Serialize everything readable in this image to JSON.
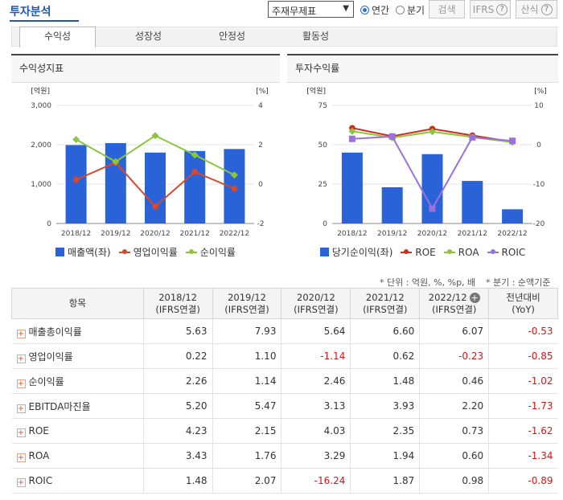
{
  "header": {
    "title": "투자분석",
    "select_value": "주재무제표",
    "radio_annual": "연간",
    "radio_quarter": "분기",
    "search_btn": "검색",
    "ifrs_btn": "IFRS",
    "calc_btn": "산식"
  },
  "tabs": [
    "수익성",
    "성장성",
    "안정성",
    "활동성"
  ],
  "left_chart_title": "수익성지표",
  "right_chart_title": "투자수익률",
  "chart_data": [
    {
      "type": "bar",
      "categories": [
        "2018/12",
        "2019/12",
        "2020/12",
        "2021/12",
        "2022/12"
      ],
      "left_unit": "[억원]",
      "right_unit": "[%]",
      "ylim_left": [
        0,
        3000
      ],
      "ylim_right": [
        -2,
        4
      ],
      "left_ticks": [
        "3,000",
        "2,000",
        "1,000",
        "0"
      ],
      "right_ticks": [
        "4",
        "2",
        "0",
        "-2"
      ],
      "series": [
        {
          "name": "매출액(좌)",
          "type": "bar",
          "axis": "left",
          "color": "#2a63d8",
          "values": [
            1990,
            2040,
            1800,
            1840,
            1890
          ]
        },
        {
          "name": "영업이익률",
          "type": "line",
          "axis": "right",
          "color": "#d9482a",
          "values": [
            0.22,
            1.1,
            -1.14,
            0.62,
            -0.23
          ]
        },
        {
          "name": "순이익률",
          "type": "line",
          "axis": "right",
          "color": "#8cc63e",
          "values": [
            2.26,
            1.14,
            2.46,
            1.48,
            0.46
          ]
        }
      ]
    },
    {
      "type": "bar",
      "categories": [
        "2018/12",
        "2019/12",
        "2020/12",
        "2021/12",
        "2022/12"
      ],
      "left_unit": "[억원]",
      "right_unit": "[%]",
      "ylim_left": [
        0,
        75
      ],
      "ylim_right": [
        -20,
        10
      ],
      "left_ticks": [
        "75",
        "50",
        "25",
        "0"
      ],
      "right_ticks": [
        "10",
        "0",
        "-10",
        "-20"
      ],
      "series": [
        {
          "name": "당기순이익(좌)",
          "type": "bar",
          "axis": "left",
          "color": "#2a63d8",
          "values": [
            45,
            23,
            44,
            27,
            9
          ]
        },
        {
          "name": "ROE",
          "type": "line",
          "axis": "right",
          "color": "#c8301e",
          "values": [
            4.23,
            2.15,
            4.03,
            2.35,
            0.73
          ]
        },
        {
          "name": "ROA",
          "type": "line",
          "axis": "right",
          "color": "#8cc63e",
          "values": [
            3.43,
            1.76,
            3.29,
            1.94,
            0.6
          ]
        },
        {
          "name": "ROIC",
          "type": "line",
          "axis": "right",
          "color": "#9b72d8",
          "values": [
            1.48,
            2.07,
            -16.24,
            1.87,
            0.98
          ]
        }
      ]
    }
  ],
  "notes": {
    "unit": "* 단위 : 억원, %, %p, 배",
    "quarter": "* 분기 : 순액기준"
  },
  "table": {
    "headers": [
      "항목",
      "2018/12\n(IFRS연결)",
      "2019/12\n(IFRS연결)",
      "2020/12\n(IFRS연결)",
      "2021/12\n(IFRS연결)",
      "2022/12\n(IFRS연결)",
      "전년대비\n(YoY)"
    ],
    "rows": [
      {
        "name": "매출총이익률",
        "values": [
          "5.63",
          "7.93",
          "5.64",
          "6.60",
          "6.07",
          "-0.53"
        ]
      },
      {
        "name": "영업이익률",
        "values": [
          "0.22",
          "1.10",
          "-1.14",
          "0.62",
          "-0.23",
          "-0.85"
        ]
      },
      {
        "name": "순이익률",
        "values": [
          "2.26",
          "1.14",
          "2.46",
          "1.48",
          "0.46",
          "-1.02"
        ]
      },
      {
        "name": "EBITDA마진율",
        "values": [
          "5.20",
          "5.47",
          "3.13",
          "3.93",
          "2.20",
          "-1.73"
        ]
      },
      {
        "name": "ROE",
        "values": [
          "4.23",
          "2.15",
          "4.03",
          "2.35",
          "0.73",
          "-1.62"
        ]
      },
      {
        "name": "ROA",
        "values": [
          "3.43",
          "1.76",
          "3.29",
          "1.94",
          "0.60",
          "-1.34"
        ]
      },
      {
        "name": "ROIC",
        "values": [
          "1.48",
          "2.07",
          "-16.24",
          "1.87",
          "0.98",
          "-0.89"
        ]
      }
    ]
  }
}
